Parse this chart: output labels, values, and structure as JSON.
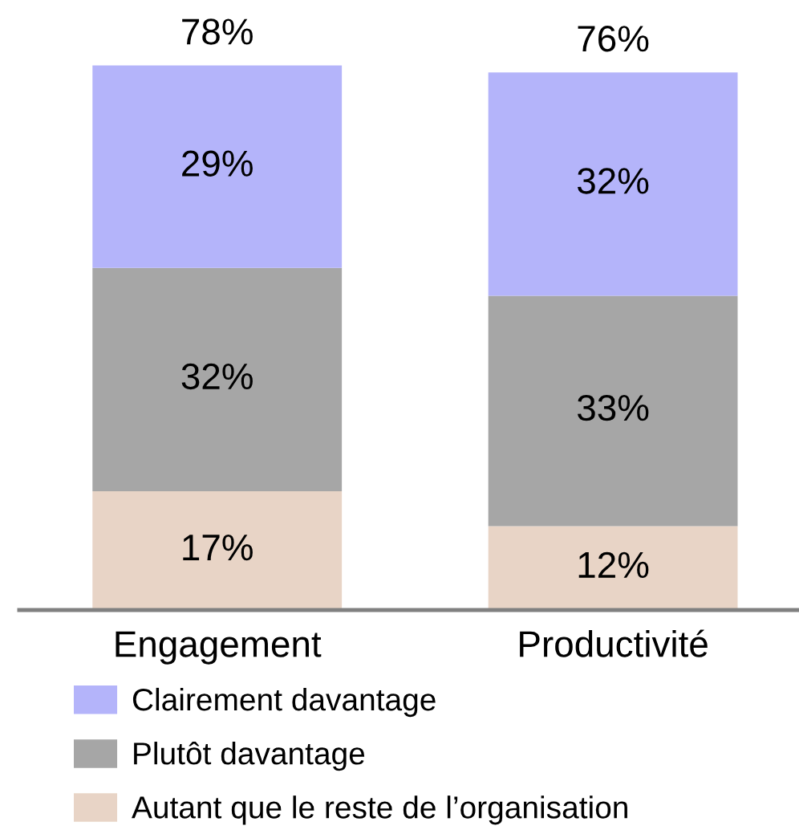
{
  "chart_data": {
    "type": "bar",
    "stacked": true,
    "categories": [
      "Engagement",
      "Productivité"
    ],
    "series": [
      {
        "name": "Autant que le reste de l’organisation",
        "color": "#e8d4c6",
        "values": [
          17,
          12
        ],
        "value_labels": [
          "17%",
          "12%"
        ]
      },
      {
        "name": "Plutôt davantage",
        "color": "#a6a6a6",
        "values": [
          32,
          33
        ],
        "value_labels": [
          "32%",
          "33%"
        ]
      },
      {
        "name": "Clairement davantage",
        "color": "#b4b4fa",
        "values": [
          29,
          32
        ],
        "value_labels": [
          "29%",
          "32%"
        ]
      }
    ],
    "totals": [
      "78%",
      "76%"
    ],
    "legend": "bottom",
    "grid": false
  }
}
